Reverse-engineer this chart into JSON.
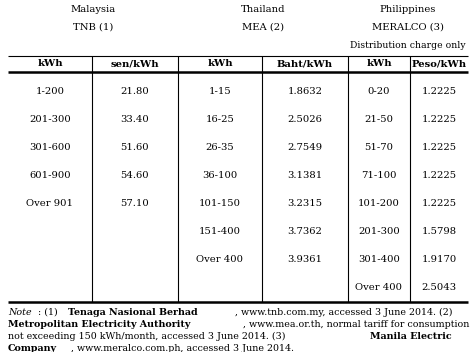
{
  "title_row1_labels": [
    "Malaysia",
    "Thailand",
    "Philippines"
  ],
  "title_row2_labels": [
    "TNB (1)",
    "MEA (2)",
    "MERALCO (3)"
  ],
  "title_row3_label": "Distribution charge only",
  "header_row": [
    "kWh",
    "sen/kWh",
    "kWh",
    "Baht/kWh",
    "kWh",
    "Peso/kWh"
  ],
  "data_rows": [
    [
      "1-200",
      "21.80",
      "1-15",
      "1.8632",
      "0-20",
      "1.2225"
    ],
    [
      "201-300",
      "33.40",
      "16-25",
      "2.5026",
      "21-50",
      "1.2225"
    ],
    [
      "301-600",
      "51.60",
      "26-35",
      "2.7549",
      "51-70",
      "1.2225"
    ],
    [
      "601-900",
      "54.60",
      "36-100",
      "3.1381",
      "71-100",
      "1.2225"
    ],
    [
      "Over 901",
      "57.10",
      "101-150",
      "3.2315",
      "101-200",
      "1.2225"
    ],
    [
      "",
      "",
      "151-400",
      "3.7362",
      "201-300",
      "1.5798"
    ],
    [
      "",
      "",
      "Over 400",
      "3.9361",
      "301-400",
      "1.9170"
    ],
    [
      "",
      "",
      "",
      "",
      "Over 400",
      "2.5043"
    ]
  ],
  "note_lines": [
    [
      "italic",
      "Note",
      "normal",
      ": (1) ",
      "bold",
      "Tenaga Nasional Berhad",
      "normal",
      ", www.tnb.com.my, accessed 3 June 2014. (2)"
    ],
    [
      "bold",
      "Metropolitan Electricity Authority",
      "normal",
      ", www.mea.or.th, normal tariff for consumption"
    ],
    [
      "normal",
      "not exceeding 150 kWh/month, accessed 3 June 2014. (3) ",
      "bold",
      "Manila Electric"
    ],
    [
      "bold",
      "Company",
      "normal",
      ", www.meralco.com.ph, accessed 3 June 2014."
    ]
  ],
  "bg_color": "#ffffff",
  "line_color": "#000000",
  "text_color": "#000000",
  "font_size": 7.2,
  "note_font_size": 6.8
}
